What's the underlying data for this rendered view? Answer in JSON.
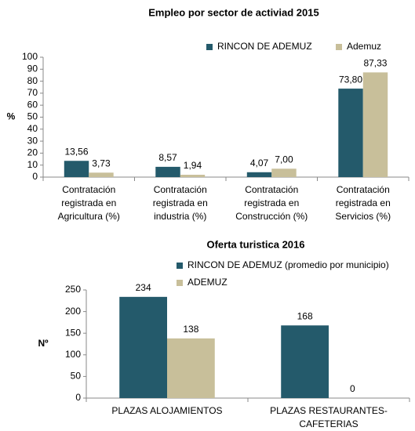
{
  "chart_data": [
    {
      "type": "bar",
      "title": "Empleo por sector de activiad 2015",
      "y_label": "%",
      "categories": [
        "Contratación\nregistrada en\nAgricultura  (%)",
        "Contratación\nregistrada en\nindustria  (%)",
        "Contratación\nregistrada en\nConstrucción  (%)",
        "Contratación\nregistrada en\nServicios  (%)"
      ],
      "series": [
        {
          "name": "RINCON DE ADEMUZ",
          "color": "#245a6b",
          "values": [
            13.56,
            8.57,
            4.07,
            73.8
          ],
          "value_labels": [
            "13,56",
            "8,57",
            "4,07",
            "73,80"
          ]
        },
        {
          "name": "Ademuz",
          "color": "#c8bf9a",
          "values": [
            3.73,
            1.94,
            7.0,
            87.33
          ],
          "value_labels": [
            "3,73",
            "1,94",
            "7,00",
            "87,33"
          ]
        }
      ],
      "ylim": [
        0,
        100
      ],
      "yticks": [
        0,
        10,
        20,
        30,
        40,
        50,
        60,
        70,
        80,
        90,
        100
      ],
      "legend": "top-right",
      "grid": false
    },
    {
      "type": "bar",
      "title": "Oferta turistica 2016",
      "y_label": "Nº",
      "categories": [
        "PLAZAS ALOJAMIENTOS",
        "PLAZAS RESTAURANTES-\nCAFETERIAS"
      ],
      "series": [
        {
          "name": "RINCON DE ADEMUZ (promedio por municipio)",
          "color": "#245a6b",
          "values": [
            234,
            168
          ]
        },
        {
          "name": "ADEMUZ",
          "color": "#c8bf9a",
          "values": [
            138,
            0
          ]
        }
      ],
      "ylim": [
        0,
        250
      ],
      "yticks": [
        0,
        50,
        100,
        150,
        200,
        250
      ],
      "legend": "top",
      "grid": false
    }
  ]
}
